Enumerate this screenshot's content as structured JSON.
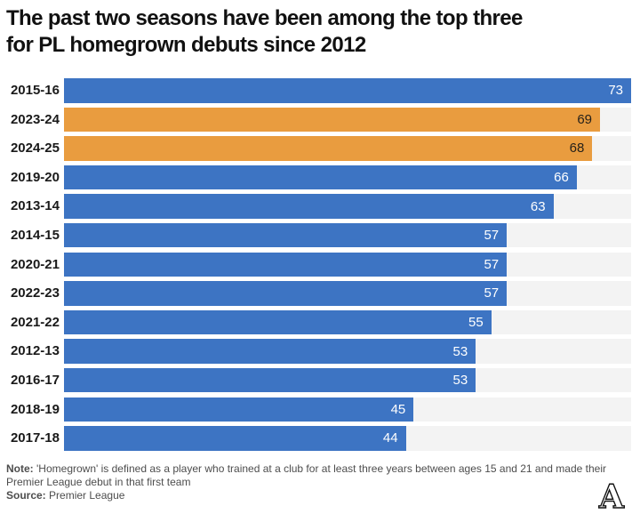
{
  "header": {
    "title_lines": [
      "The past two seasons have been among the top three",
      "for PL homegrown debuts since 2012"
    ]
  },
  "chart_data": {
    "type": "bar",
    "orientation": "horizontal",
    "title": "The past two seasons have been among the top three for PL homegrown debuts since 2012",
    "categories": [
      "2015-16",
      "2023-24",
      "2024-25",
      "2019-20",
      "2013-14",
      "2014-15",
      "2020-21",
      "2022-23",
      "2021-22",
      "2012-13",
      "2016-17",
      "2018-19",
      "2017-18"
    ],
    "values": [
      73,
      69,
      68,
      66,
      63,
      57,
      57,
      57,
      55,
      53,
      53,
      45,
      44
    ],
    "highlighted": [
      "2023-24",
      "2024-25"
    ],
    "xlim": [
      0,
      73
    ],
    "value_labels": "inside-end",
    "grid": false,
    "legend": false,
    "xlabel": "",
    "ylabel": ""
  },
  "colors": {
    "bar_default": "#3d74c3",
    "bar_highlight": "#e99c3f",
    "track": "#f3f3f3",
    "value_on_default": "#ffffff",
    "value_on_highlight": "#26211a",
    "title": "#111111",
    "row_label": "#1a1a1a",
    "note_text": "#4d4d4d"
  },
  "footer": {
    "note_label": "Note:",
    "note_line1": "'Homegrown' is defined as a player who trained at a club for at least three years between ages 15 and 21 and made their",
    "note_line2": "Premier League debut in that first team",
    "source_label": "Source:",
    "source_text": "Premier League",
    "logo_glyph": "A",
    "logo_name": "The Athletic"
  }
}
